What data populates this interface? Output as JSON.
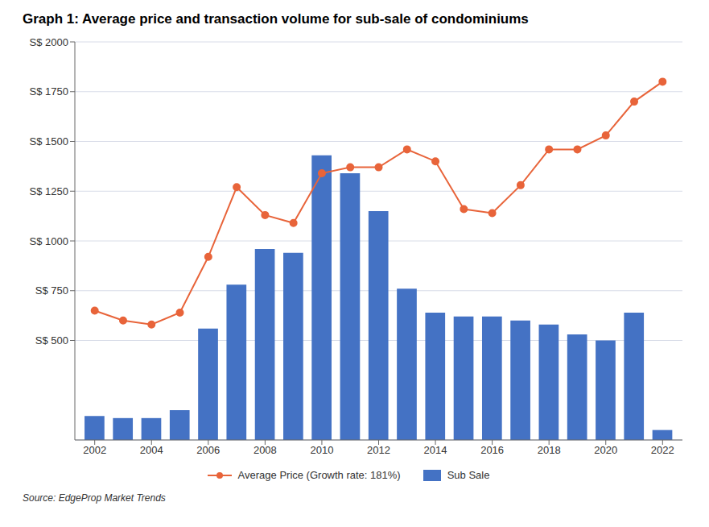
{
  "chart_data": {
    "type": "bar",
    "title": "Graph 1: Average price and transaction volume for sub-sale of condominiums",
    "annotations": [
      "Source: EdgeProp Market Trends"
    ],
    "x": [
      2002,
      2003,
      2004,
      2005,
      2006,
      2007,
      2008,
      2009,
      2010,
      2011,
      2012,
      2013,
      2014,
      2015,
      2016,
      2017,
      2018,
      2019,
      2020,
      2021,
      2022
    ],
    "series": [
      {
        "name": "Average Price (Growth rate: 181%)",
        "type": "line",
        "color": "#E8643A",
        "marker": "circle",
        "values": [
          650,
          600,
          580,
          640,
          920,
          1270,
          1130,
          1090,
          1340,
          1370,
          1370,
          1460,
          1400,
          1160,
          1140,
          1280,
          1460,
          1460,
          1530,
          1700,
          1800
        ]
      },
      {
        "name": "Sub Sale",
        "type": "bar",
        "color": "#4472C4",
        "values": [
          120,
          110,
          110,
          150,
          560,
          780,
          960,
          940,
          1430,
          1340,
          1150,
          760,
          640,
          620,
          620,
          600,
          580,
          530,
          500,
          640,
          50
        ]
      }
    ],
    "xlim": [
      2001.3,
      2022.7
    ],
    "xticks": [
      2002,
      2004,
      2006,
      2008,
      2010,
      2012,
      2014,
      2016,
      2018,
      2020,
      2022
    ],
    "ylim": [
      0,
      2000
    ],
    "yticks": [
      {
        "value": 500,
        "label": "S$ 500"
      },
      {
        "value": 750,
        "label": "S$ 750"
      },
      {
        "value": 1000,
        "label": "S$ 1000"
      },
      {
        "value": 1250,
        "label": "S$ 1250"
      },
      {
        "value": 1500,
        "label": "S$ 1500"
      },
      {
        "value": 1750,
        "label": "S$ 1750"
      },
      {
        "value": 2000,
        "label": "S$ 2000"
      }
    ],
    "grid": "y",
    "legend": "bottom"
  }
}
